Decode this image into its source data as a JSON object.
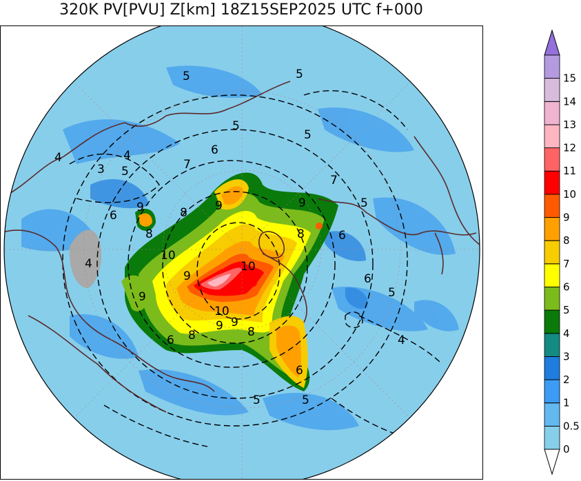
{
  "title": "320K PV[PVU] Z[km] 18Z15SEP2025 UTC f+000",
  "colorbar": {
    "levels": [
      {
        "label": "0",
        "color": "#87ceeb"
      },
      {
        "label": "0.5",
        "color": "#63b8f0"
      },
      {
        "label": "1",
        "color": "#3c9cf5"
      },
      {
        "label": "2",
        "color": "#1e7dde"
      },
      {
        "label": "3",
        "color": "#138a82"
      },
      {
        "label": "4",
        "color": "#0a7a0a"
      },
      {
        "label": "5",
        "color": "#7cbb1c"
      },
      {
        "label": "6",
        "color": "#ffff00"
      },
      {
        "label": "7",
        "color": "#f7cc00"
      },
      {
        "label": "8",
        "color": "#ffa000"
      },
      {
        "label": "9",
        "color": "#ff5a00"
      },
      {
        "label": "10",
        "color": "#ff0000"
      },
      {
        "label": "11",
        "color": "#ff6464"
      },
      {
        "label": "12",
        "color": "#ffb6c1"
      },
      {
        "label": "13",
        "color": "#f0b4d2"
      },
      {
        "label": "14",
        "color": "#d8bcdc"
      },
      {
        "label": "15",
        "color": "#b49be0"
      }
    ],
    "top_arrow_color": "#9370db",
    "bottom_arrow_color": "#ffffff"
  },
  "contour_labels": [
    {
      "text": "5"
    },
    {
      "text": "5"
    },
    {
      "text": "5"
    },
    {
      "text": "5"
    },
    {
      "text": "4"
    },
    {
      "text": "4"
    },
    {
      "text": "3"
    },
    {
      "text": "5"
    },
    {
      "text": "6"
    },
    {
      "text": "7"
    },
    {
      "text": "9"
    },
    {
      "text": "9"
    },
    {
      "text": "8"
    },
    {
      "text": "6"
    },
    {
      "text": "8"
    },
    {
      "text": "10"
    },
    {
      "text": "9"
    },
    {
      "text": "10"
    },
    {
      "text": "4"
    },
    {
      "text": "9"
    },
    {
      "text": "9"
    },
    {
      "text": "10"
    },
    {
      "text": "9"
    },
    {
      "text": "8"
    },
    {
      "text": "8"
    },
    {
      "text": "6"
    },
    {
      "text": "5"
    },
    {
      "text": "6"
    },
    {
      "text": "5"
    },
    {
      "text": "4"
    },
    {
      "text": "6"
    },
    {
      "text": "5"
    },
    {
      "text": "5"
    },
    {
      "text": "9"
    },
    {
      "text": "6"
    },
    {
      "text": "8"
    },
    {
      "text": "7"
    }
  ]
}
